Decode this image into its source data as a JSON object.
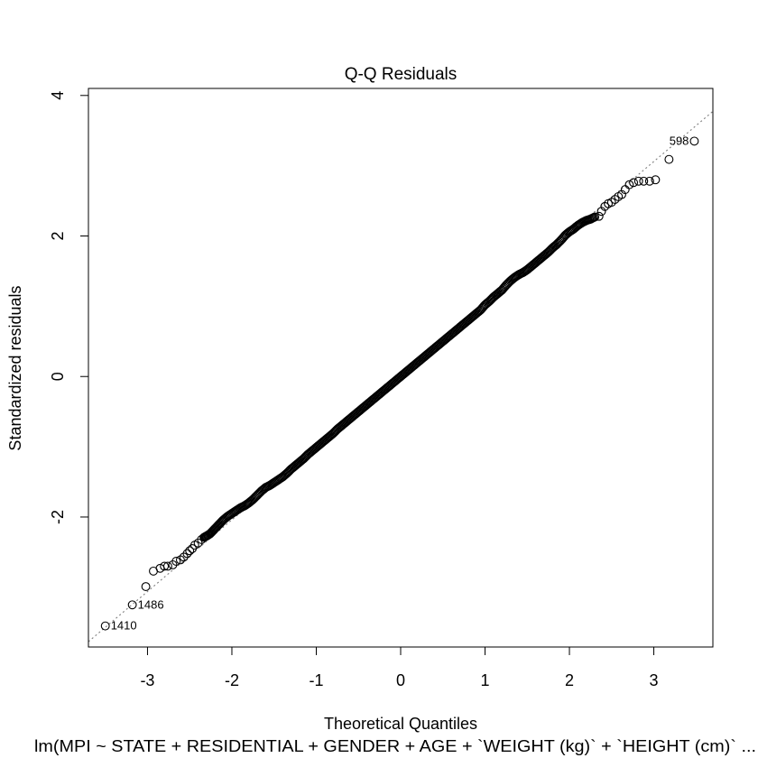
{
  "chart_data": {
    "type": "scatter",
    "title": "Q-Q Residuals",
    "xlabel": "Theoretical Quantiles",
    "ylabel": "Standardized residuals",
    "subtitle": "lm(MPI ~ STATE + RESIDENTIAL + GENDER + AGE + `WEIGHT (kg)` + `HEIGHT (cm)` ...",
    "xlim": [
      -3.7,
      3.7
    ],
    "ylim": [
      -3.85,
      4.1
    ],
    "x_ticks": [
      "-3",
      "-2",
      "-1",
      "0",
      "1",
      "2",
      "3"
    ],
    "x_tick_values": [
      -3,
      -2,
      -1,
      0,
      1,
      2,
      3
    ],
    "y_ticks": [
      "-2",
      "0",
      "2",
      "4"
    ],
    "y_tick_values": [
      -2,
      0,
      2,
      4
    ],
    "reference_line": {
      "style": "dotted",
      "color": "#7f7f7f",
      "intercept": 0.0,
      "slope": 1.02
    },
    "tail_points": [
      {
        "x": -3.5,
        "y": -3.55,
        "label": "1410"
      },
      {
        "x": -3.18,
        "y": -3.25,
        "label": "1486"
      },
      {
        "x": -3.02,
        "y": -2.99
      },
      {
        "x": -2.93,
        "y": -2.77
      },
      {
        "x": -2.85,
        "y": -2.73
      },
      {
        "x": -2.8,
        "y": -2.7
      },
      {
        "x": -2.76,
        "y": -2.7
      },
      {
        "x": -2.7,
        "y": -2.68
      },
      {
        "x": -2.66,
        "y": -2.63
      },
      {
        "x": -2.61,
        "y": -2.61
      },
      {
        "x": -2.57,
        "y": -2.57
      },
      {
        "x": -2.53,
        "y": -2.52
      },
      {
        "x": -2.5,
        "y": -2.48
      },
      {
        "x": -2.47,
        "y": -2.45
      },
      {
        "x": -2.44,
        "y": -2.4
      },
      {
        "x": -2.4,
        "y": -2.37
      },
      {
        "x": -2.36,
        "y": -2.32
      },
      {
        "x": 2.35,
        "y": 2.28
      },
      {
        "x": 2.38,
        "y": 2.35
      },
      {
        "x": 2.42,
        "y": 2.42
      },
      {
        "x": 2.46,
        "y": 2.46
      },
      {
        "x": 2.5,
        "y": 2.48
      },
      {
        "x": 2.54,
        "y": 2.52
      },
      {
        "x": 2.58,
        "y": 2.56
      },
      {
        "x": 2.62,
        "y": 2.59
      },
      {
        "x": 2.66,
        "y": 2.66
      },
      {
        "x": 2.71,
        "y": 2.73
      },
      {
        "x": 2.76,
        "y": 2.76
      },
      {
        "x": 2.82,
        "y": 2.78
      },
      {
        "x": 2.88,
        "y": 2.78
      },
      {
        "x": 2.95,
        "y": 2.78
      },
      {
        "x": 3.02,
        "y": 2.8
      },
      {
        "x": 3.18,
        "y": 3.09
      },
      {
        "x": 3.48,
        "y": 3.35,
        "label": "598"
      }
    ],
    "bulk_points": [
      [
        -2.33,
        -2.29
      ],
      [
        -2.3,
        -2.27
      ],
      [
        -2.26,
        -2.24
      ],
      [
        -2.22,
        -2.19
      ],
      [
        -2.18,
        -2.14
      ],
      [
        -2.14,
        -2.09
      ],
      [
        -2.1,
        -2.04
      ],
      [
        -2.05,
        -1.99
      ],
      [
        -2.0,
        -1.95
      ],
      [
        -1.95,
        -1.91
      ],
      [
        -1.9,
        -1.87
      ],
      [
        -1.85,
        -1.84
      ],
      [
        -1.8,
        -1.8
      ],
      [
        -1.75,
        -1.75
      ],
      [
        -1.7,
        -1.69
      ],
      [
        -1.65,
        -1.63
      ],
      [
        -1.6,
        -1.58
      ],
      [
        -1.55,
        -1.55
      ],
      [
        -1.5,
        -1.51
      ],
      [
        -1.45,
        -1.47
      ],
      [
        -1.4,
        -1.43
      ],
      [
        -1.35,
        -1.38
      ],
      [
        -1.3,
        -1.32
      ],
      [
        -1.25,
        -1.27
      ],
      [
        -1.2,
        -1.22
      ],
      [
        -1.15,
        -1.17
      ],
      [
        -1.1,
        -1.11
      ],
      [
        -1.05,
        -1.06
      ],
      [
        -1.0,
        -1.01
      ],
      [
        -0.95,
        -0.96
      ],
      [
        -0.9,
        -0.91
      ],
      [
        -0.85,
        -0.86
      ],
      [
        -0.8,
        -0.81
      ],
      [
        -0.75,
        -0.75
      ],
      [
        -0.7,
        -0.7
      ],
      [
        -0.65,
        -0.65
      ],
      [
        -0.6,
        -0.6
      ],
      [
        -0.55,
        -0.55
      ],
      [
        -0.5,
        -0.5
      ],
      [
        -0.45,
        -0.45
      ],
      [
        -0.4,
        -0.4
      ],
      [
        -0.35,
        -0.35
      ],
      [
        -0.3,
        -0.3
      ],
      [
        -0.25,
        -0.25
      ],
      [
        -0.2,
        -0.2
      ],
      [
        -0.15,
        -0.15
      ],
      [
        -0.1,
        -0.1
      ],
      [
        -0.05,
        -0.05
      ],
      [
        0.0,
        0.0
      ],
      [
        0.05,
        0.05
      ],
      [
        0.1,
        0.1
      ],
      [
        0.15,
        0.15
      ],
      [
        0.2,
        0.2
      ],
      [
        0.25,
        0.25
      ],
      [
        0.3,
        0.3
      ],
      [
        0.35,
        0.35
      ],
      [
        0.4,
        0.4
      ],
      [
        0.45,
        0.45
      ],
      [
        0.5,
        0.5
      ],
      [
        0.55,
        0.55
      ],
      [
        0.6,
        0.6
      ],
      [
        0.65,
        0.65
      ],
      [
        0.7,
        0.7
      ],
      [
        0.75,
        0.75
      ],
      [
        0.8,
        0.8
      ],
      [
        0.85,
        0.85
      ],
      [
        0.9,
        0.9
      ],
      [
        0.95,
        0.95
      ],
      [
        1.0,
        1.02
      ],
      [
        1.05,
        1.07
      ],
      [
        1.1,
        1.13
      ],
      [
        1.15,
        1.18
      ],
      [
        1.2,
        1.23
      ],
      [
        1.25,
        1.3
      ],
      [
        1.3,
        1.36
      ],
      [
        1.35,
        1.41
      ],
      [
        1.4,
        1.45
      ],
      [
        1.45,
        1.48
      ],
      [
        1.5,
        1.52
      ],
      [
        1.55,
        1.57
      ],
      [
        1.6,
        1.62
      ],
      [
        1.65,
        1.67
      ],
      [
        1.7,
        1.72
      ],
      [
        1.75,
        1.77
      ],
      [
        1.8,
        1.83
      ],
      [
        1.85,
        1.88
      ],
      [
        1.9,
        1.94
      ],
      [
        1.95,
        2.01
      ],
      [
        2.0,
        2.06
      ],
      [
        2.05,
        2.1
      ],
      [
        2.1,
        2.15
      ],
      [
        2.15,
        2.19
      ],
      [
        2.2,
        2.22
      ],
      [
        2.25,
        2.24
      ],
      [
        2.3,
        2.27
      ]
    ]
  }
}
